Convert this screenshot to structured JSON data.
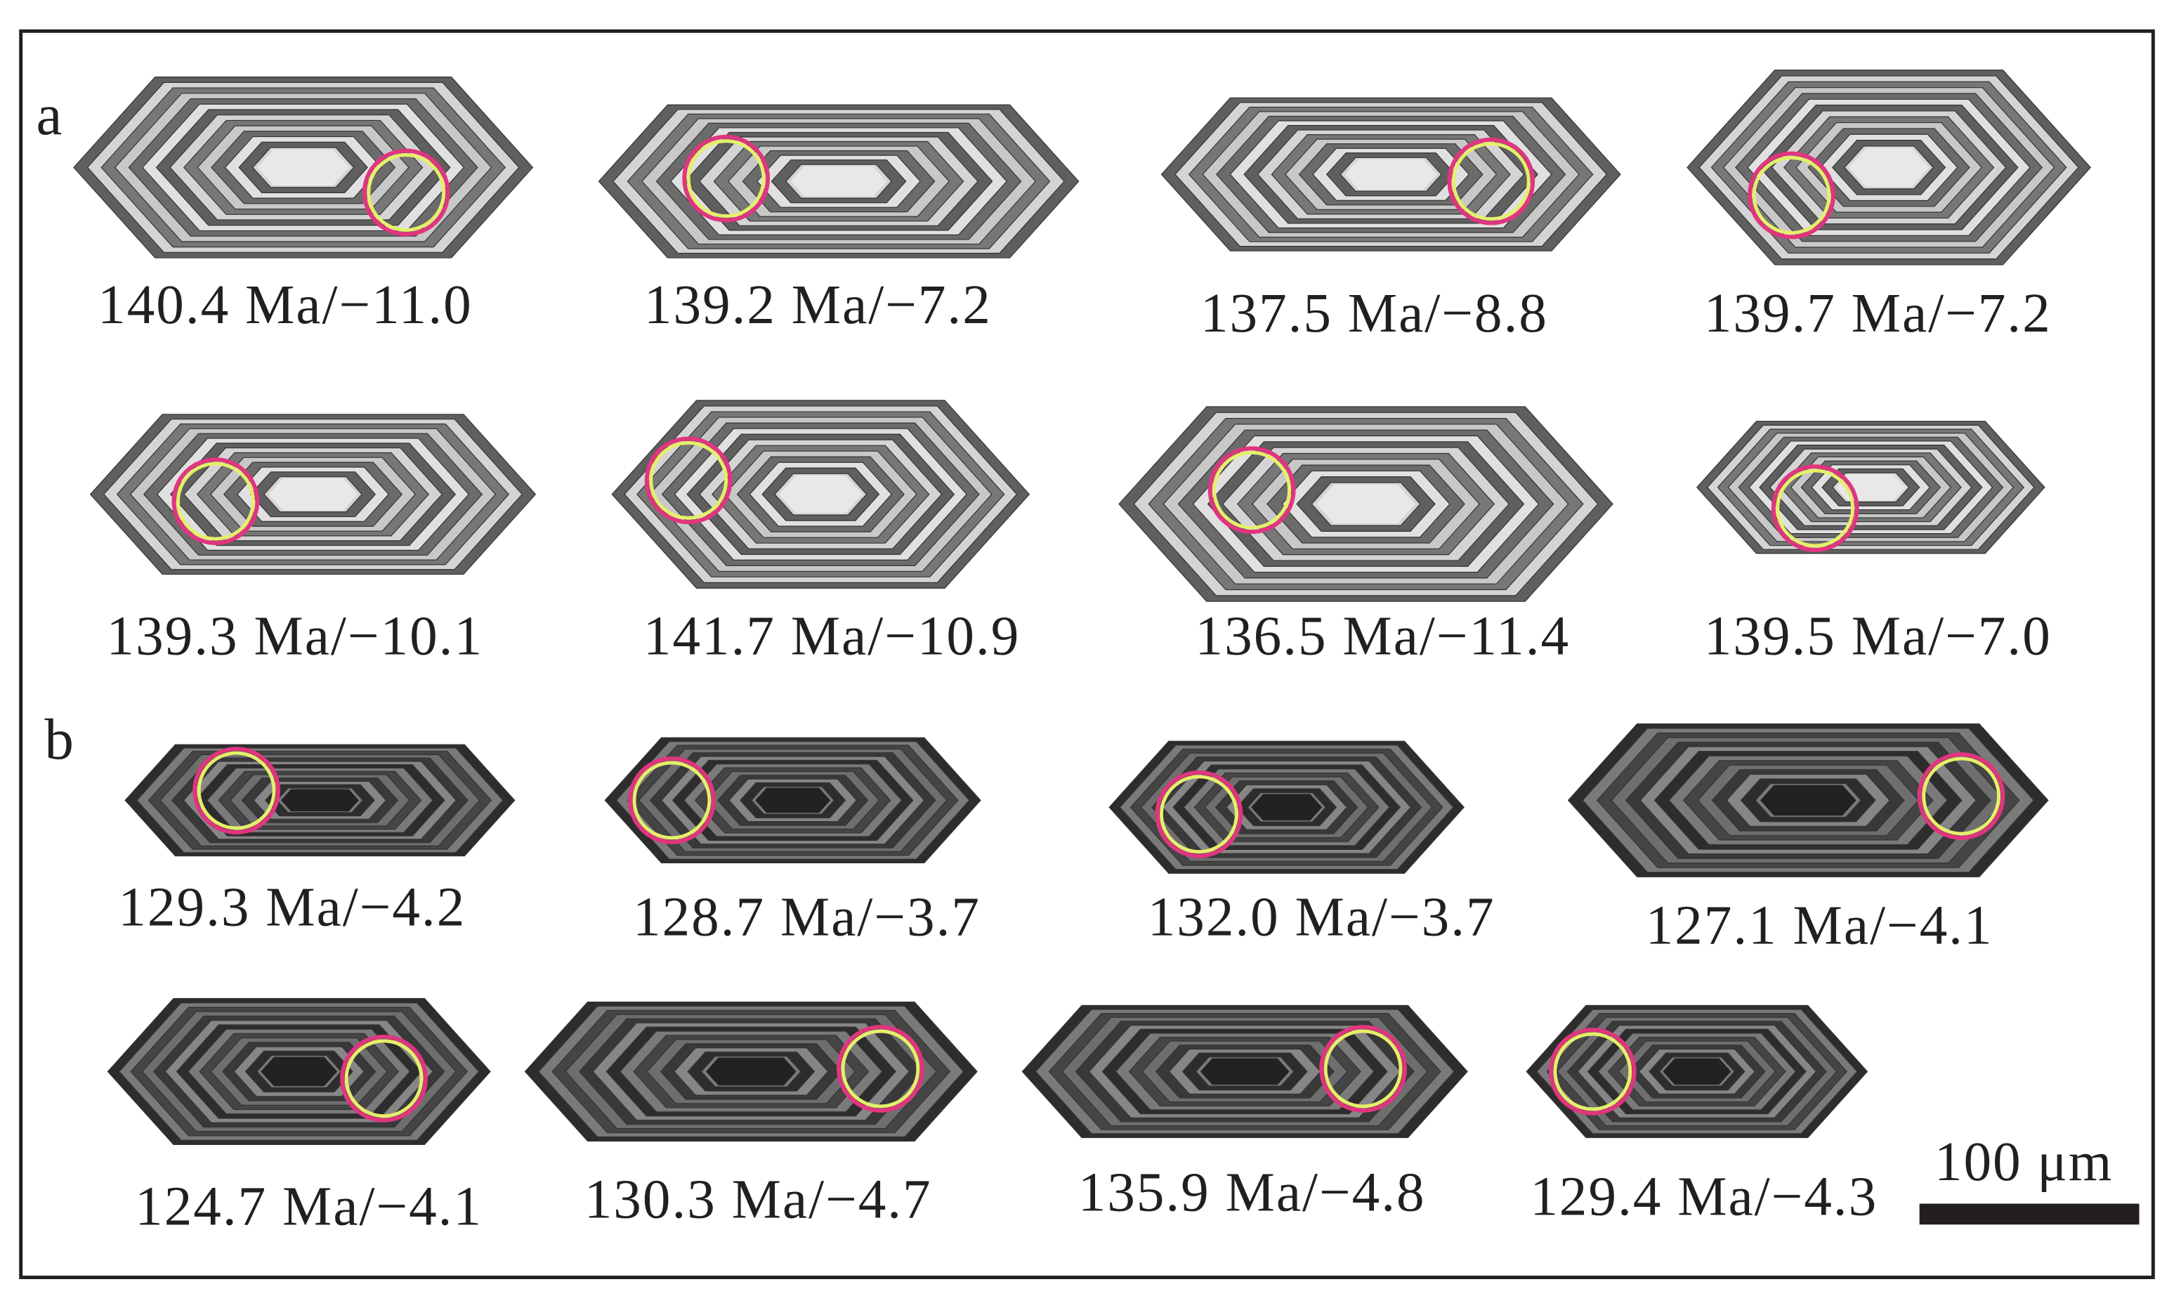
{
  "panels": [
    {
      "label": "a",
      "grains": [
        {
          "label": "140.4 Ma/−11.0"
        },
        {
          "label": "139.2 Ma/−7.2"
        },
        {
          "label": "137.5 Ma/−8.8"
        },
        {
          "label": "139.7 Ma/−7.2"
        },
        {
          "label": "139.3 Ma/−10.1"
        },
        {
          "label": "141.7 Ma/−10.9"
        },
        {
          "label": "136.5 Ma/−11.4"
        },
        {
          "label": "139.5 Ma/−7.0"
        }
      ]
    },
    {
      "label": "b",
      "grains": [
        {
          "label": "129.3 Ma/−4.2"
        },
        {
          "label": "128.7 Ma/−3.7"
        },
        {
          "label": "132.0 Ma/−3.7"
        },
        {
          "label": "127.1 Ma/−4.1"
        },
        {
          "label": "124.7 Ma/−4.1"
        },
        {
          "label": "130.3 Ma/−4.7"
        },
        {
          "label": "135.9 Ma/−4.8"
        },
        {
          "label": "129.4 Ma/−4.3"
        }
      ]
    }
  ],
  "scale_bar": "100 μm"
}
